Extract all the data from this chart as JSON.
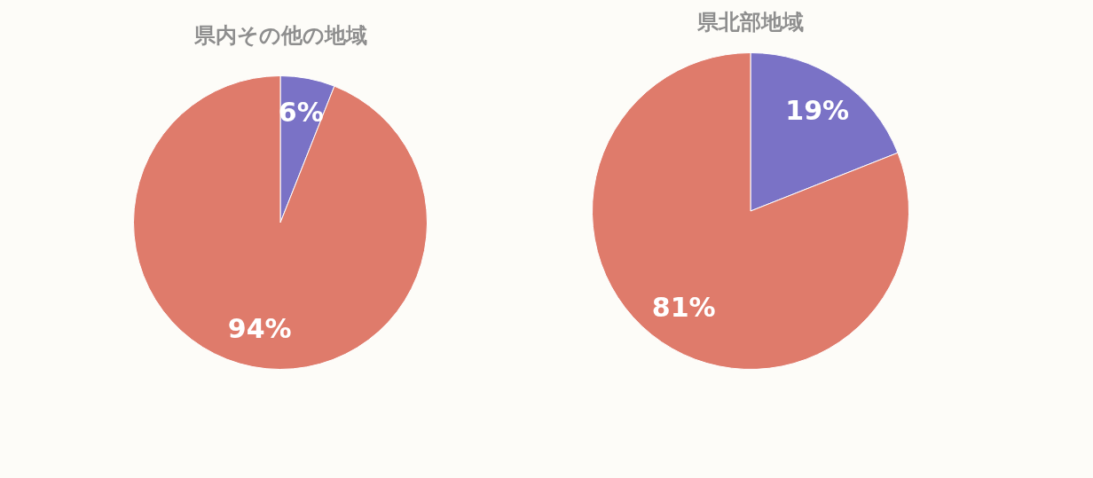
{
  "chart_data": [
    {
      "type": "pie",
      "title": "県内その他の地域",
      "categories": [
        null,
        null
      ],
      "values": [
        6,
        94
      ],
      "value_labels": [
        "6%",
        "94%"
      ],
      "colors": [
        "#7a72c6",
        "#df7b6b"
      ]
    },
    {
      "type": "pie",
      "title": "県北部地域",
      "categories": [
        null,
        null
      ],
      "values": [
        19,
        81
      ],
      "value_labels": [
        "19%",
        "81%"
      ],
      "colors": [
        "#7a72c6",
        "#df7b6b"
      ]
    }
  ]
}
